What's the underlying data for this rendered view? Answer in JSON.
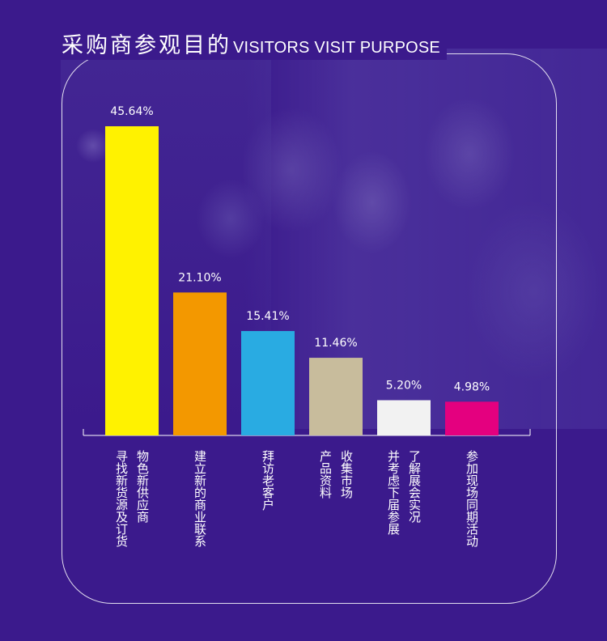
{
  "title_cn": "采购商参观目的",
  "title_en": "VISITORS VISIT PURPOSE",
  "chart_data": {
    "type": "bar",
    "title": "采购商参观目的 VISITORS VISIT PURPOSE",
    "categories": [
      [
        "物色新供应商",
        "寻找新货源及订货"
      ],
      [
        "建立新的商业联系"
      ],
      [
        "拜访老客户"
      ],
      [
        "收集市场",
        "产品资料"
      ],
      [
        "了解展会实况",
        "并考虑下届参展"
      ],
      [
        "参加现场同期活动"
      ]
    ],
    "values": [
      45.64,
      21.1,
      15.41,
      11.46,
      5.2,
      4.98
    ],
    "labels": [
      "45.64%",
      "21.10%",
      "15.41%",
      "11.46%",
      "5.20%",
      "4.98%"
    ],
    "colors": [
      "#fff200",
      "#f39800",
      "#29abe2",
      "#c8bc9c",
      "#f2f2f2",
      "#e4007f"
    ],
    "ylim": [
      0,
      50
    ],
    "xlabel": "",
    "ylabel": ""
  }
}
